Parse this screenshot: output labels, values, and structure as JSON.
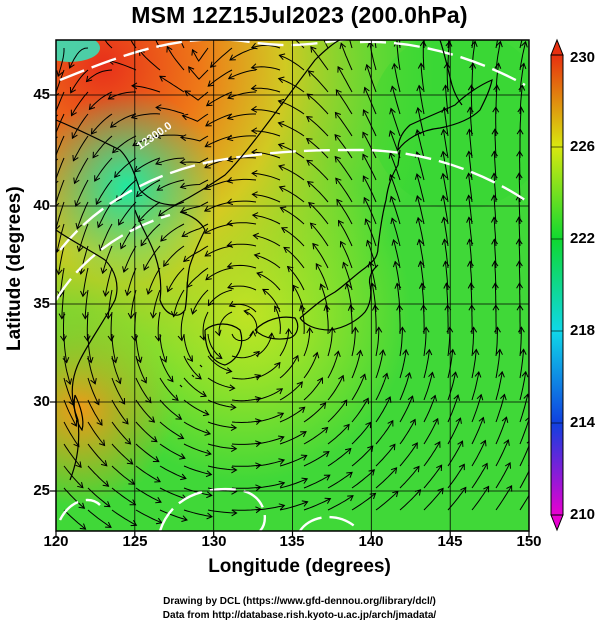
{
  "figure": {
    "title": "MSM 12Z15Jul2023 (200.0hPa)",
    "xlabel": "Longitude (degrees)",
    "ylabel": "Latitude  (degrees)",
    "xticks": [
      "120",
      "125",
      "130",
      "135",
      "140",
      "145",
      "150"
    ],
    "yticks": [
      "45",
      "40",
      "35",
      "30",
      "25"
    ],
    "colorbar_ticks": [
      "230",
      "226",
      "222",
      "218",
      "214",
      "210"
    ],
    "contour_label": "12300.0",
    "credit_line1": "Drawing by DCL (https://www.gfd-dennou.org/library/dcl/)",
    "credit_line2": "Data from http://database.rish.kyoto-u.ac.jp/arch/jmadata/"
  },
  "chart_data": {
    "type": "heatmap",
    "title": "MSM 12Z15Jul2023 (200.0hPa)",
    "xlabel": "Longitude (degrees)",
    "ylabel": "Latitude  (degrees)",
    "xlim": [
      120,
      150
    ],
    "ylim": [
      22.5,
      47.5
    ],
    "colorbar": {
      "min": 210,
      "max": 230,
      "ticks": [
        230,
        226,
        222,
        218,
        214,
        210
      ]
    },
    "overlays": [
      "streamlines",
      "geopotential height contours (white)",
      "coastlines",
      "1 degree? no: 5 degree grid"
    ],
    "contour_labels": [
      "12300.0"
    ],
    "colors": {
      "c210": "#e800d0",
      "c214": "#1040e0",
      "c218": "#10d8e8",
      "c222": "#10d830",
      "c226": "#d8e810",
      "c230": "#e83010"
    }
  }
}
